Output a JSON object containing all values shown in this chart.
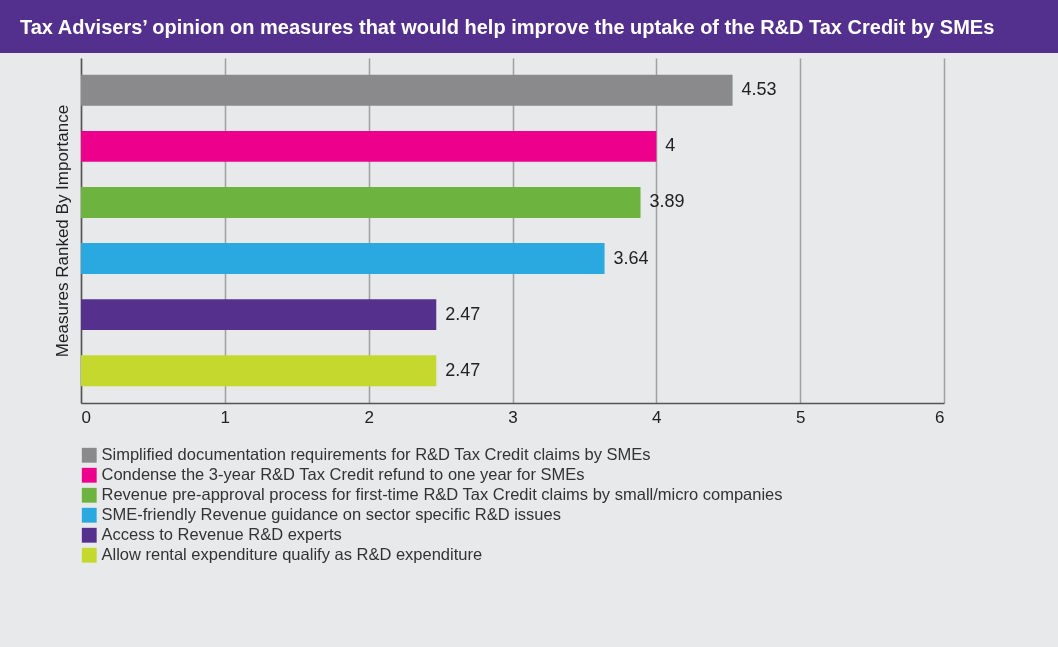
{
  "chart_data": {
    "type": "bar",
    "orientation": "horizontal",
    "title": "Tax Advisers’ opinion on measures that would help improve the uptake of the R&D Tax Credit by SMEs",
    "ylabel": "Measures Ranked By Importance",
    "categories": [
      null,
      null,
      null,
      null,
      null,
      null
    ],
    "series": [
      {
        "name": "Simplified documentation requirements for R&D Tax Credit claims by SMEs",
        "color": "#8a898c",
        "values": [
          4.53,
          null,
          null,
          null,
          null,
          null
        ]
      },
      {
        "name": "Condense the 3-year R&D Tax Credit refund to one year for SMEs",
        "color": "#ec008c",
        "values": [
          null,
          4,
          null,
          null,
          null,
          null
        ]
      },
      {
        "name": "Revenue pre-approval process for first-time R&D Tax Credit claims by small/micro companies",
        "color": "#6db33f",
        "values": [
          null,
          null,
          3.89,
          null,
          null,
          null
        ]
      },
      {
        "name": "SME-friendly Revenue guidance on sector specific R&D issues",
        "color": "#29a9e0",
        "values": [
          null,
          null,
          null,
          3.64,
          null,
          null
        ]
      },
      {
        "name": "Access to Revenue R&D experts",
        "color": "#55308d",
        "values": [
          null,
          null,
          null,
          null,
          2.47,
          null
        ]
      },
      {
        "name": "Allow rental expenditure qualify as R&D expenditure",
        "color": "#c5d82e",
        "values": [
          null,
          null,
          null,
          null,
          null,
          2.47
        ]
      }
    ],
    "xlim": [
      0,
      6
    ],
    "xticks": [
      0,
      1,
      2,
      3,
      4,
      5,
      6
    ],
    "grid": "x",
    "data_labels": true,
    "legend": "bottom",
    "tick_labels": "x"
  }
}
